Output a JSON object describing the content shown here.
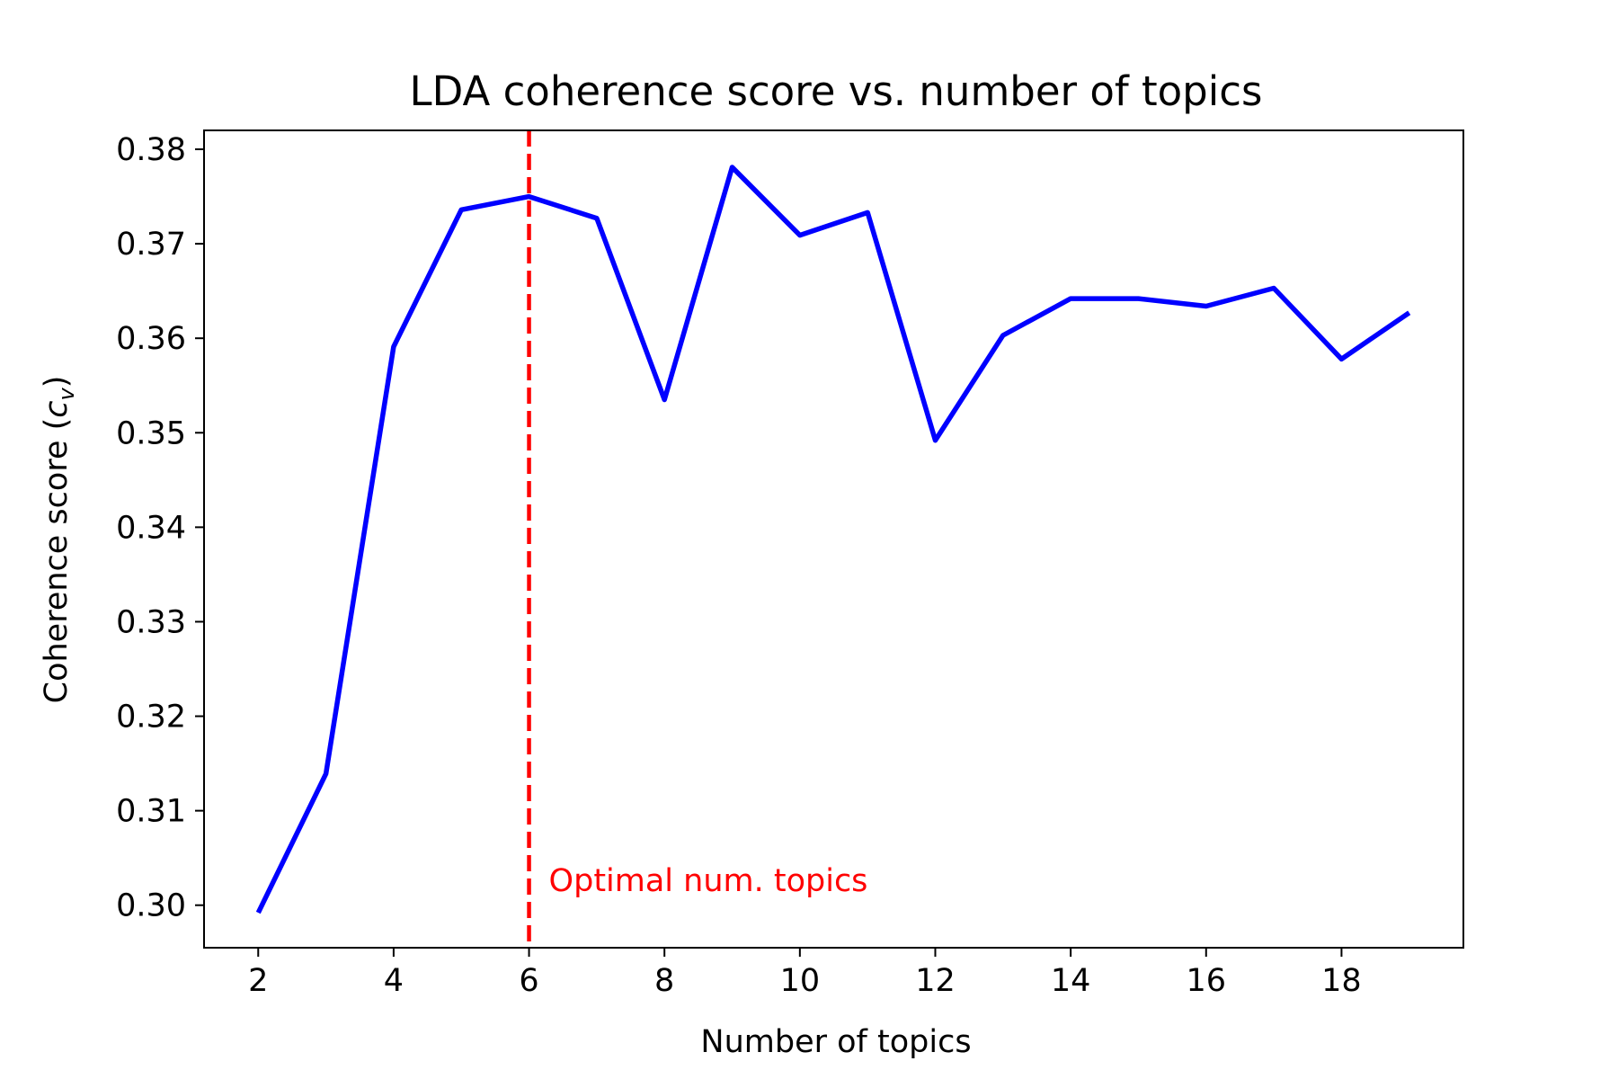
{
  "chart_data": {
    "type": "line",
    "title": "LDA coherence score vs. number of topics",
    "xlabel": "Number of topics",
    "ylabel": {
      "prefix": "Coherence score (",
      "c": "c",
      "sub": "v",
      "suffix": ")"
    },
    "xlim": [
      1.2,
      19.8
    ],
    "ylim": [
      0.2955,
      0.382
    ],
    "xticks": [
      2,
      4,
      6,
      8,
      10,
      12,
      14,
      16,
      18
    ],
    "xtick_labels": [
      "2",
      "4",
      "6",
      "8",
      "10",
      "12",
      "14",
      "16",
      "18"
    ],
    "yticks": [
      0.3,
      0.31,
      0.32,
      0.33,
      0.34,
      0.35,
      0.36,
      0.37,
      0.38
    ],
    "ytick_labels": [
      "0.30",
      "0.31",
      "0.32",
      "0.33",
      "0.34",
      "0.35",
      "0.36",
      "0.37",
      "0.38"
    ],
    "grid": false,
    "series": [
      {
        "color": "#0000ff",
        "x": [
          2,
          3,
          4,
          5,
          6,
          7,
          8,
          9,
          10,
          11,
          12,
          13,
          14,
          15,
          16,
          17,
          18,
          19
        ],
        "y": [
          0.2992,
          0.3139,
          0.3591,
          0.3736,
          0.375,
          0.3727,
          0.3535,
          0.3781,
          0.3709,
          0.3733,
          0.3492,
          0.3603,
          0.3642,
          0.3642,
          0.3634,
          0.3653,
          0.3578,
          0.3627
        ]
      }
    ],
    "vline": {
      "x": 6,
      "color": "#ff0000",
      "style": "dashed",
      "label": "Optimal num. topics",
      "label_color": "#ff0000"
    }
  }
}
